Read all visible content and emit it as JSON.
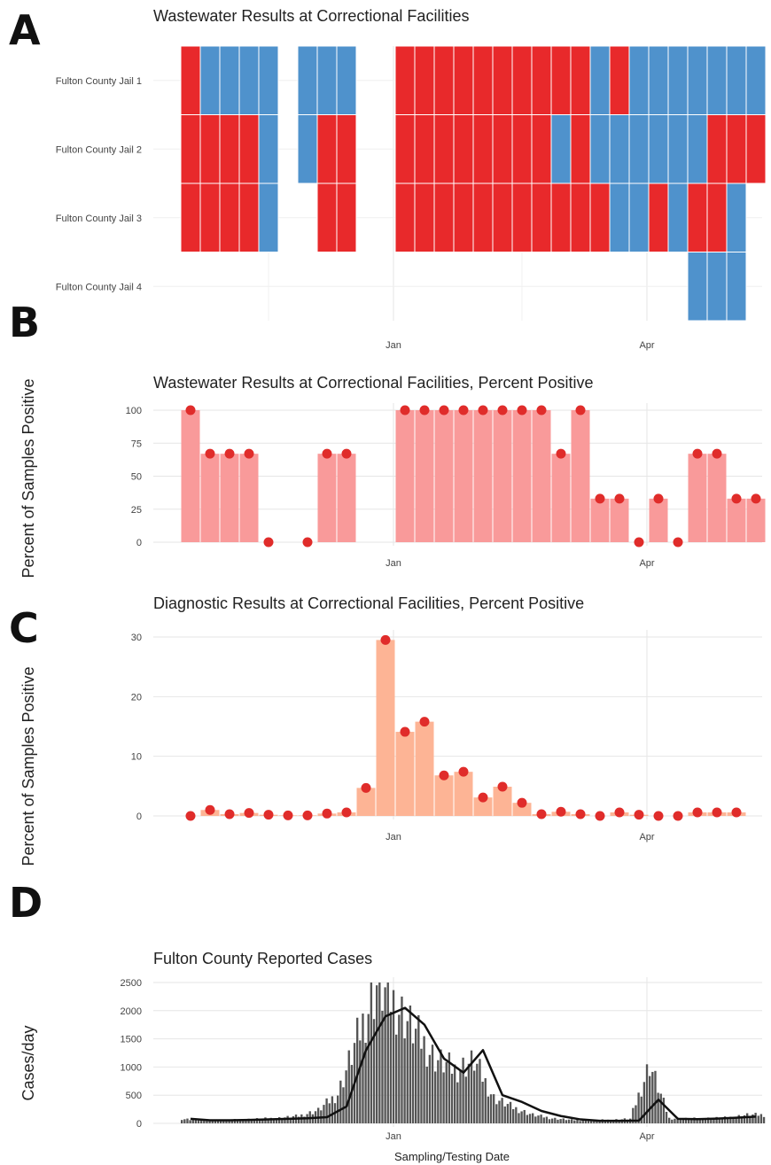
{
  "figure": {
    "panel_letters": [
      "A",
      "B",
      "C",
      "D"
    ],
    "colors": {
      "positive": "#e8292b",
      "negative": "#4f92cc",
      "ww_bar": "#f99a9a",
      "dx_bar": "#fdb495",
      "point": "#e02c2a",
      "case_bar": "#555555",
      "case_line": "#111111",
      "grid": "#e6e6e6"
    }
  },
  "chart_data": [
    {
      "panel": "A",
      "type": "heatmap",
      "title": "Wastewater Results at Correctional Facilities",
      "xlabel": "",
      "ylabel": "",
      "x_ticks": [
        "Jan",
        "Apr"
      ],
      "x_tick_weeks": [
        11,
        24
      ],
      "n_weeks": 30,
      "rows": [
        "Fulton County Jail 1",
        "Fulton County Jail 2",
        "Fulton County Jail 3",
        "Fulton County Jail 4"
      ],
      "legend": "none",
      "cells": [
        {
          "row": 0,
          "start_week": 0,
          "results": [
            "positive",
            "negative",
            "negative",
            "negative",
            "negative"
          ]
        },
        {
          "row": 0,
          "start_week": 6,
          "results": [
            "negative",
            "negative",
            "negative"
          ]
        },
        {
          "row": 0,
          "start_week": 11,
          "results": [
            "positive",
            "positive",
            "positive",
            "positive",
            "positive",
            "positive",
            "positive",
            "positive",
            "positive",
            "positive",
            "negative",
            "positive",
            "negative",
            "negative",
            "negative",
            "negative",
            "negative",
            "negative",
            "negative"
          ]
        },
        {
          "row": 1,
          "start_week": 0,
          "results": [
            "positive",
            "positive",
            "positive",
            "positive",
            "negative"
          ]
        },
        {
          "row": 1,
          "start_week": 6,
          "results": [
            "negative",
            "positive",
            "positive"
          ]
        },
        {
          "row": 1,
          "start_week": 11,
          "results": [
            "positive",
            "positive",
            "positive",
            "positive",
            "positive",
            "positive",
            "positive",
            "positive",
            "negative",
            "positive",
            "negative",
            "negative",
            "negative",
            "negative",
            "negative",
            "negative",
            "positive",
            "positive",
            "positive"
          ]
        },
        {
          "row": 2,
          "start_week": 0,
          "results": [
            "positive",
            "positive",
            "positive",
            "positive",
            "negative"
          ]
        },
        {
          "row": 2,
          "start_week": 7,
          "results": [
            "positive",
            "positive"
          ]
        },
        {
          "row": 2,
          "start_week": 11,
          "results": [
            "positive",
            "positive",
            "positive",
            "positive",
            "positive",
            "positive",
            "positive",
            "positive",
            "positive",
            "positive",
            "positive",
            "negative",
            "negative",
            "positive",
            "negative",
            "positive",
            "positive",
            "negative"
          ]
        },
        {
          "row": 3,
          "start_week": 26,
          "results": [
            "negative",
            "negative",
            "negative"
          ]
        }
      ]
    },
    {
      "panel": "B",
      "type": "bar",
      "title": "Wastewater Results at Correctional Facilities, Percent Positive",
      "xlabel": "",
      "ylabel": "Percent of Samples Positive",
      "ylim": [
        0,
        100
      ],
      "y_ticks": [
        0,
        25,
        50,
        75,
        100
      ],
      "x_ticks": [
        "Jan",
        "Apr"
      ],
      "x_tick_weeks": [
        11,
        24
      ],
      "grid": true,
      "legend": "none",
      "weeks": [
        0,
        1,
        2,
        3,
        4,
        6,
        7,
        8,
        11,
        12,
        13,
        14,
        15,
        16,
        17,
        18,
        19,
        20,
        21,
        22,
        23,
        24,
        25,
        26,
        27,
        28,
        29
      ],
      "values": [
        100,
        67,
        67,
        67,
        0,
        0,
        67,
        67,
        100,
        100,
        100,
        100,
        100,
        100,
        100,
        100,
        67,
        100,
        33,
        33,
        0,
        33,
        0,
        67,
        67,
        33,
        33
      ]
    },
    {
      "panel": "C",
      "type": "bar",
      "title": "Diagnostic Results at Correctional Facilities, Percent Positive",
      "xlabel": "",
      "ylabel": "Percent of Samples Positive",
      "ylim": [
        0,
        30
      ],
      "y_ticks": [
        0,
        10,
        20,
        30
      ],
      "x_ticks": [
        "Jan",
        "Apr"
      ],
      "x_tick_weeks": [
        11,
        24
      ],
      "grid": true,
      "legend": "none",
      "weeks": [
        0,
        1,
        2,
        3,
        4,
        5,
        6,
        7,
        8,
        9,
        10,
        11,
        12,
        13,
        14,
        15,
        16,
        17,
        18,
        19,
        20,
        21,
        22,
        23,
        24,
        25,
        26,
        27,
        28
      ],
      "values": [
        0.0,
        1.0,
        0.3,
        0.5,
        0.2,
        0.1,
        0.1,
        0.4,
        0.6,
        4.7,
        29.5,
        14.1,
        15.8,
        6.8,
        7.4,
        3.1,
        4.9,
        2.2,
        0.3,
        0.7,
        0.3,
        0.0,
        0.6,
        0.2,
        0.0,
        0.0,
        0.6,
        0.6,
        0.6
      ]
    },
    {
      "panel": "D",
      "type": "bar",
      "title": "Fulton County Reported Cases",
      "xlabel": "Sampling/Testing Date",
      "ylabel": "Cases/day",
      "ylim": [
        0,
        2500
      ],
      "y_ticks": [
        0,
        500,
        1000,
        1500,
        2000,
        2500
      ],
      "x_ticks": [
        "Jan",
        "Apr"
      ],
      "x_tick_weeks": [
        11,
        24
      ],
      "grid": true,
      "legend": "none",
      "series": [
        {
          "kind": "bar",
          "week_values": [
            80,
            60,
            55,
            65,
            80,
            95,
            130,
            230,
            520,
            1500,
            2450,
            2100,
            1600,
            1150,
            950,
            1100,
            450,
            280,
            150,
            90,
            60,
            55,
            60,
            80,
            1050,
            90,
            80,
            90,
            100,
            150
          ]
        },
        {
          "kind": "line",
          "points": [
            [
              0,
              80
            ],
            [
              1,
              55
            ],
            [
              2,
              55
            ],
            [
              3,
              60
            ],
            [
              4,
              70
            ],
            [
              5,
              80
            ],
            [
              6,
              90
            ],
            [
              7,
              110
            ],
            [
              8,
              300
            ],
            [
              9,
              1300
            ],
            [
              10,
              1900
            ],
            [
              11,
              2050
            ],
            [
              12,
              1750
            ],
            [
              13,
              1150
            ],
            [
              14,
              900
            ],
            [
              15,
              1300
            ],
            [
              16,
              500
            ],
            [
              17,
              380
            ],
            [
              18,
              220
            ],
            [
              19,
              130
            ],
            [
              20,
              70
            ],
            [
              21,
              45
            ],
            [
              22,
              45
            ],
            [
              23,
              50
            ],
            [
              24,
              420
            ],
            [
              25,
              80
            ],
            [
              26,
              75
            ],
            [
              27,
              85
            ],
            [
              28,
              100
            ],
            [
              29,
              120
            ]
          ]
        }
      ]
    }
  ]
}
